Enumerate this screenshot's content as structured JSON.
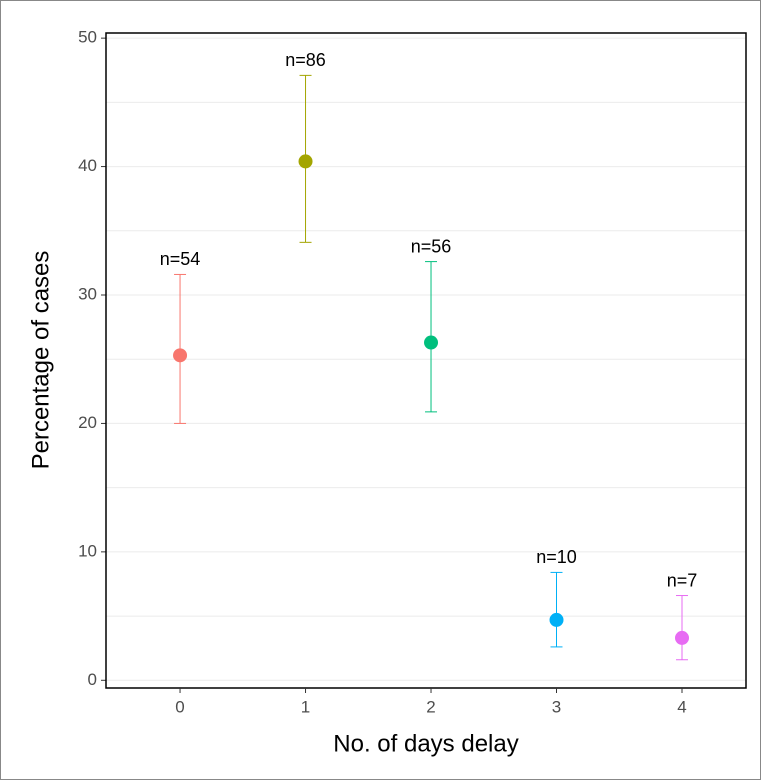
{
  "chart_data": {
    "type": "errorpoint",
    "x_label": "No. of days delay",
    "y_label": "Percentage of cases",
    "categories": [
      "0",
      "1",
      "2",
      "3",
      "4"
    ],
    "values": [
      25.3,
      40.4,
      26.3,
      4.7,
      3.3
    ],
    "lower": [
      20.0,
      34.1,
      20.9,
      2.6,
      1.6
    ],
    "upper": [
      31.6,
      47.1,
      32.6,
      8.4,
      6.6
    ],
    "colors": [
      "#F8766D",
      "#A3A500",
      "#00BF7D",
      "#00B0F6",
      "#E76BF3"
    ],
    "annotations": [
      "n=54",
      "n=86",
      "n=56",
      "n=10",
      "n=7"
    ],
    "ylim": [
      -0.6,
      50.4
    ],
    "yticks": [
      0,
      10,
      20,
      30,
      40,
      50
    ],
    "grid": true
  }
}
